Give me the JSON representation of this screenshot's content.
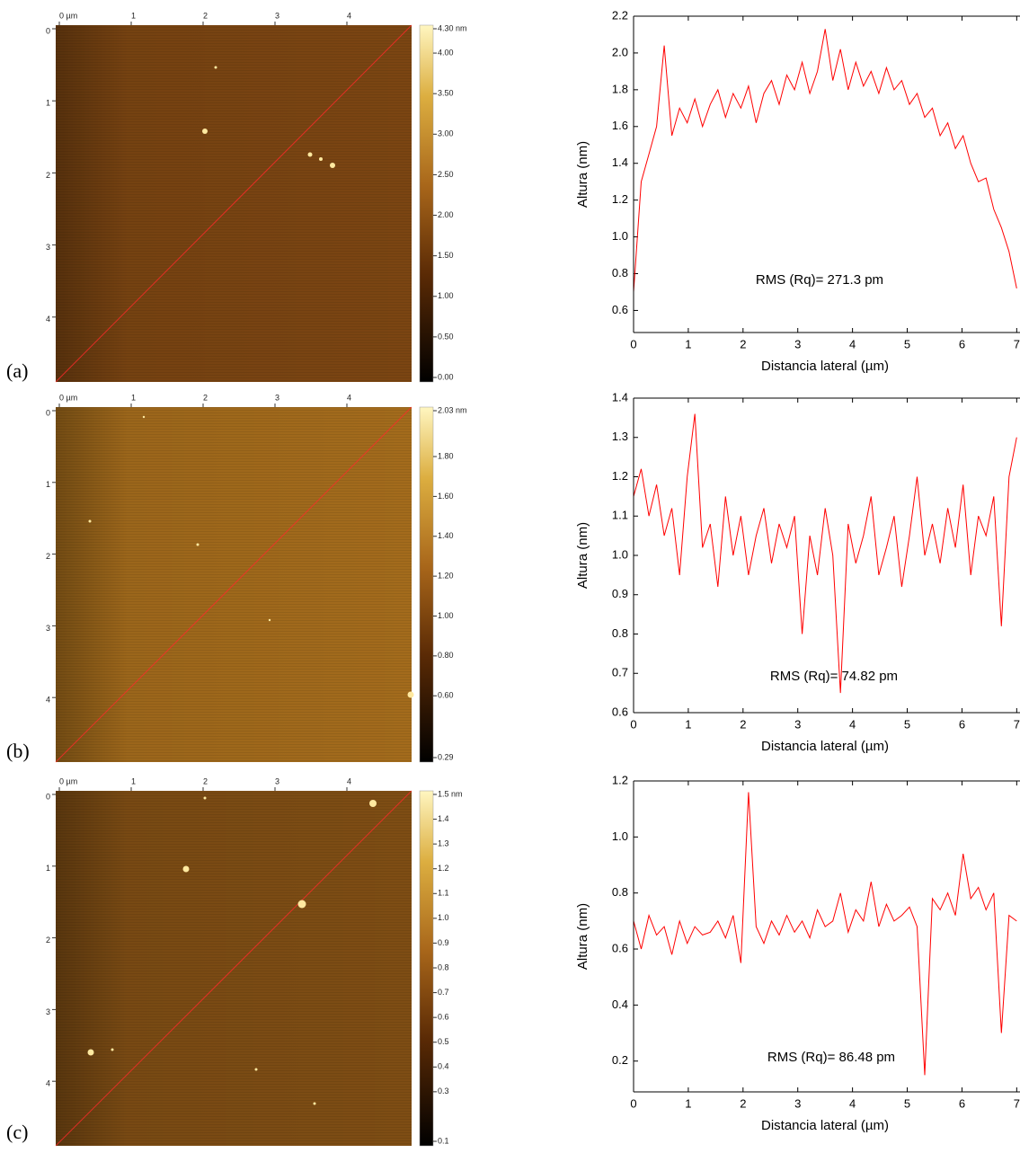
{
  "chart_data": [
    {
      "type": "afm-image",
      "panel_label": "(a)",
      "color": "#7b4512",
      "xlim": [
        -0.05,
        4.9
      ],
      "ylim": [
        -0.05,
        4.9
      ],
      "xticks": [
        {
          "value": 0,
          "label": "0 µm"
        },
        1,
        2,
        3,
        4
      ],
      "yticks": [
        0,
        1,
        2,
        3,
        4
      ],
      "clim": [
        0,
        4.3
      ],
      "colorbar_ticks": [
        {
          "value": 4.3,
          "label": "4.30 nm"
        },
        {
          "value": 4,
          "label": "4.00"
        },
        {
          "value": 3.5,
          "label": "3.50"
        },
        {
          "value": 3,
          "label": "3.00"
        },
        {
          "value": 2.5,
          "label": "2.50"
        },
        {
          "value": 2,
          "label": "2.00"
        },
        {
          "value": 1.5,
          "label": "1.50"
        },
        {
          "value": 1,
          "label": "1.00"
        },
        {
          "value": 0.5,
          "label": "0.50"
        },
        {
          "value": 0,
          "label": "0.00"
        }
      ]
    },
    {
      "type": "afm-image",
      "panel_label": "(b)",
      "color": "#a36b1c",
      "xlim": [
        -0.05,
        4.9
      ],
      "ylim": [
        -0.05,
        4.9
      ],
      "xticks": [
        {
          "value": 0,
          "label": "0 µm"
        },
        1,
        2,
        3,
        4
      ],
      "yticks": [
        0,
        1,
        2,
        3,
        4
      ],
      "clim": [
        0.29,
        2.03
      ],
      "colorbar_ticks": [
        {
          "value": 2.03,
          "label": "2.03 nm"
        },
        {
          "value": 1.8,
          "label": "1.80"
        },
        {
          "value": 1.6,
          "label": "1.60"
        },
        {
          "value": 1.4,
          "label": "1.40"
        },
        {
          "value": 1.2,
          "label": "1.20"
        },
        {
          "value": 1,
          "label": "1.00"
        },
        {
          "value": 0.8,
          "label": "0.80"
        },
        {
          "value": 0.6,
          "label": "0.60"
        },
        0.29
      ]
    },
    {
      "type": "afm-image",
      "panel_label": "(c)",
      "color": "#7e4d14",
      "xlim": [
        -0.05,
        4.9
      ],
      "ylim": [
        -0.05,
        4.9
      ],
      "xticks": [
        {
          "value": 0,
          "label": "0 µm"
        },
        1,
        2,
        3,
        4
      ],
      "yticks": [
        0,
        1,
        2,
        3,
        4
      ],
      "clim": [
        0.1,
        1.5
      ],
      "colorbar_ticks": [
        {
          "value": 1.5,
          "label": "1.5 nm"
        },
        1.4,
        1.3,
        1.2,
        1.1,
        {
          "value": 1,
          "label": "1.0"
        },
        0.9,
        0.8,
        0.7,
        0.6,
        0.5,
        0.4,
        0.3,
        0.1
      ]
    },
    {
      "type": "line",
      "x_label": "Distancia lateral (µm)",
      "y_label": "Altura (nm)",
      "annotation": "RMS (Rq)= 271.3 pm",
      "color": "#ff0000",
      "xlim": [
        0,
        7.06
      ],
      "ylim": [
        0.48,
        2.2
      ],
      "xticks": [
        0,
        1,
        2,
        3,
        4,
        5,
        6,
        7
      ],
      "yticks": [
        {
          "value": 2.2,
          "label": "2.2"
        },
        {
          "value": 2,
          "label": "2.0"
        },
        1.8,
        1.6,
        1.4,
        1.2,
        {
          "value": 1,
          "label": "1.0"
        },
        0.8,
        0.6
      ],
      "x": [
        0,
        0.14,
        0.28,
        0.42,
        0.56,
        0.7,
        0.84,
        0.98,
        1.12,
        1.26,
        1.4,
        1.54,
        1.68,
        1.82,
        1.96,
        2.1,
        2.24,
        2.38,
        2.52,
        2.66,
        2.8,
        2.94,
        3.08,
        3.22,
        3.36,
        3.5,
        3.64,
        3.78,
        3.92,
        4.06,
        4.2,
        4.34,
        4.48,
        4.62,
        4.76,
        4.9,
        5.04,
        5.18,
        5.32,
        5.46,
        5.6,
        5.74,
        5.88,
        6.02,
        6.16,
        6.3,
        6.44,
        6.58,
        6.72,
        6.86,
        7.0
      ],
      "values": [
        0.7,
        1.3,
        1.45,
        1.6,
        2.04,
        1.55,
        1.7,
        1.62,
        1.75,
        1.6,
        1.72,
        1.8,
        1.65,
        1.78,
        1.7,
        1.82,
        1.62,
        1.78,
        1.85,
        1.72,
        1.88,
        1.8,
        1.95,
        1.78,
        1.9,
        2.13,
        1.85,
        2.02,
        1.8,
        1.95,
        1.82,
        1.9,
        1.78,
        1.92,
        1.8,
        1.85,
        1.72,
        1.78,
        1.65,
        1.7,
        1.55,
        1.62,
        1.48,
        1.55,
        1.4,
        1.3,
        1.32,
        1.15,
        1.05,
        0.92,
        0.72
      ]
    },
    {
      "type": "line",
      "x_label": "Distancia lateral (µm)",
      "y_label": "Altura (nm)",
      "annotation": "RMS (Rq)= 74.82 pm",
      "color": "#ff0000",
      "xlim": [
        0,
        7.06
      ],
      "ylim": [
        0.6,
        1.4
      ],
      "xticks": [
        0,
        1,
        2,
        3,
        4,
        5,
        6,
        7
      ],
      "yticks": [
        1.4,
        1.3,
        1.2,
        1.1,
        {
          "value": 1,
          "label": "1.0"
        },
        0.9,
        0.8,
        0.7,
        0.6
      ],
      "x": [
        0,
        0.14,
        0.28,
        0.42,
        0.56,
        0.7,
        0.84,
        0.98,
        1.12,
        1.26,
        1.4,
        1.54,
        1.68,
        1.82,
        1.96,
        2.1,
        2.24,
        2.38,
        2.52,
        2.66,
        2.8,
        2.94,
        3.08,
        3.22,
        3.36,
        3.5,
        3.64,
        3.78,
        3.92,
        4.06,
        4.2,
        4.34,
        4.48,
        4.62,
        4.76,
        4.9,
        5.04,
        5.18,
        5.32,
        5.46,
        5.6,
        5.74,
        5.88,
        6.02,
        6.16,
        6.3,
        6.44,
        6.58,
        6.72,
        6.86,
        7.0
      ],
      "values": [
        1.15,
        1.22,
        1.1,
        1.18,
        1.05,
        1.12,
        0.95,
        1.2,
        1.36,
        1.02,
        1.08,
        0.92,
        1.15,
        1.0,
        1.1,
        0.95,
        1.05,
        1.12,
        0.98,
        1.08,
        1.02,
        1.1,
        0.8,
        1.05,
        0.95,
        1.12,
        1.0,
        0.65,
        1.08,
        0.98,
        1.05,
        1.15,
        0.95,
        1.02,
        1.1,
        0.92,
        1.05,
        1.2,
        1.0,
        1.08,
        0.98,
        1.12,
        1.02,
        1.18,
        0.95,
        1.1,
        1.05,
        1.15,
        0.82,
        1.2,
        1.3
      ]
    },
    {
      "type": "line",
      "x_label": "Distancia lateral (µm)",
      "y_label": "Altura (nm)",
      "annotation": "RMS (Rq)= 86.48 pm",
      "color": "#ff0000",
      "xlim": [
        0,
        7.06
      ],
      "ylim": [
        0.09,
        1.2
      ],
      "xticks": [
        0,
        1,
        2,
        3,
        4,
        5,
        6,
        7
      ],
      "yticks": [
        1.2,
        {
          "value": 1,
          "label": "1.0"
        },
        0.8,
        0.6,
        0.4,
        0.2
      ],
      "x": [
        0,
        0.14,
        0.28,
        0.42,
        0.56,
        0.7,
        0.84,
        0.98,
        1.12,
        1.26,
        1.4,
        1.54,
        1.68,
        1.82,
        1.96,
        2.1,
        2.24,
        2.38,
        2.52,
        2.66,
        2.8,
        2.94,
        3.08,
        3.22,
        3.36,
        3.5,
        3.64,
        3.78,
        3.92,
        4.06,
        4.2,
        4.34,
        4.48,
        4.62,
        4.76,
        4.9,
        5.04,
        5.18,
        5.32,
        5.46,
        5.6,
        5.74,
        5.88,
        6.02,
        6.16,
        6.3,
        6.44,
        6.58,
        6.72,
        6.86,
        7.0
      ],
      "values": [
        0.7,
        0.6,
        0.72,
        0.65,
        0.68,
        0.58,
        0.7,
        0.62,
        0.68,
        0.65,
        0.66,
        0.7,
        0.64,
        0.72,
        0.55,
        1.16,
        0.68,
        0.62,
        0.7,
        0.65,
        0.72,
        0.66,
        0.7,
        0.64,
        0.74,
        0.68,
        0.7,
        0.8,
        0.66,
        0.74,
        0.7,
        0.84,
        0.68,
        0.76,
        0.7,
        0.72,
        0.75,
        0.68,
        0.15,
        0.78,
        0.74,
        0.8,
        0.72,
        0.94,
        0.78,
        0.82,
        0.74,
        0.8,
        0.3,
        0.72,
        0.7
      ]
    }
  ]
}
